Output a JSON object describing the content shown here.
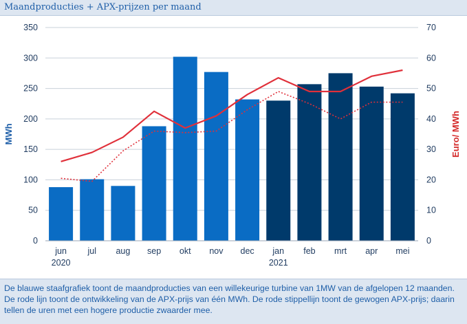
{
  "header": {
    "title": "Maandproducties + APX-prijzen per maand"
  },
  "caption": {
    "text": "De blauwe staafgrafiek toont de maandproducties van een willekeurige turbine van 1MW van de afgelopen 12 maanden. De rode lijn toont de ontwikkeling van de APX-prijs van één MWh. De rode stippellijn toont de gewogen APX-prijs; daarin tellen de uren met een hogere productie zwaarder mee."
  },
  "colors": {
    "bar_2020": "#0a6cc4",
    "bar_2021": "#003a6b",
    "apx_line": "#e0303a",
    "weighted_line": "#e0303a",
    "left_axis_title": "#1f5fa8",
    "right_axis_title": "#d42a2a"
  },
  "chart_data": {
    "type": "bar",
    "categories": [
      "jun",
      "jul",
      "aug",
      "sep",
      "okt",
      "nov",
      "dec",
      "jan",
      "feb",
      "mrt",
      "apr",
      "mei"
    ],
    "year_labels": [
      {
        "index": 0,
        "label": "2020"
      },
      {
        "index": 7,
        "label": "2021"
      }
    ],
    "ylabel": "MWh",
    "y2label": "Euro/ MWh",
    "ylim": [
      0,
      350
    ],
    "y2lim": [
      0,
      70
    ],
    "yticks": [
      0,
      50,
      100,
      150,
      200,
      250,
      300,
      350
    ],
    "y2ticks": [
      0,
      10,
      20,
      30,
      40,
      50,
      60,
      70
    ],
    "grid": true,
    "series": [
      {
        "type": "bar",
        "axis": "left",
        "values": [
          88,
          101,
          90,
          188,
          302,
          277,
          232,
          230,
          257,
          275,
          253,
          242
        ]
      },
      {
        "type": "line",
        "axis": "right",
        "style": "solid",
        "values": [
          26,
          29,
          34,
          42.5,
          37,
          41,
          48,
          53.5,
          49,
          49,
          54,
          56
        ]
      },
      {
        "type": "line",
        "axis": "right",
        "style": "dotted",
        "values": [
          20.5,
          19.5,
          29.5,
          36,
          35.5,
          36,
          43,
          49,
          45,
          40,
          45.5,
          45.5
        ]
      }
    ]
  }
}
